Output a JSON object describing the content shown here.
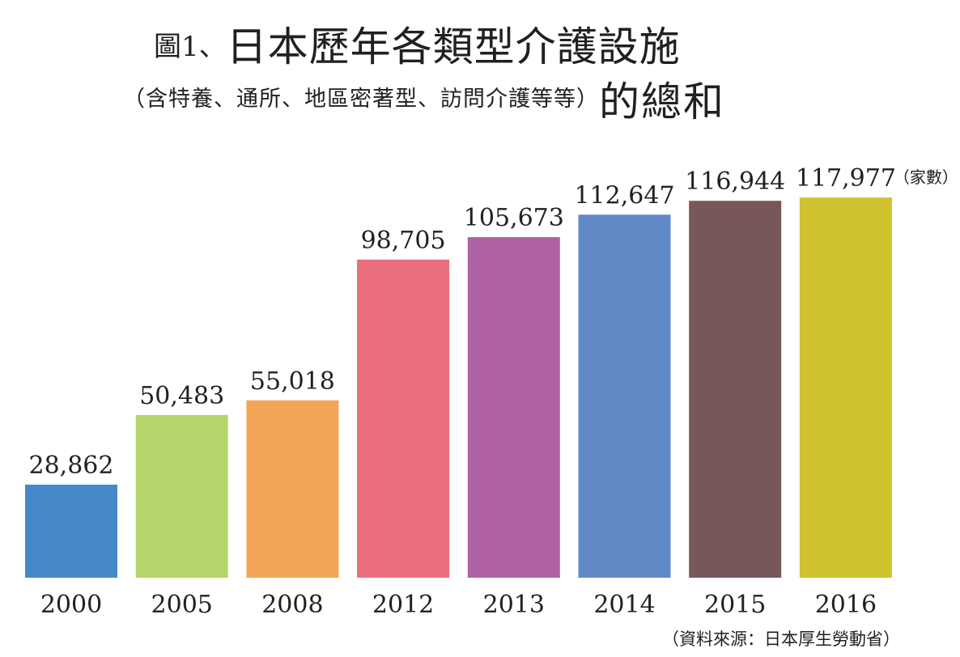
{
  "title": {
    "prefix": "圖1、",
    "main": "日本歷年各類型介護設施",
    "subtitle_paren": "（含特養、通所、地區密著型、訪問介護等等）",
    "subtitle_tail": "的總和"
  },
  "unit_label": "（家數）",
  "source": "（資料來源：日本厚生勞動省）",
  "chart_data": {
    "type": "bar",
    "categories": [
      "2000",
      "2005",
      "2008",
      "2012",
      "2013",
      "2014",
      "2015",
      "2016"
    ],
    "values": [
      28862,
      50483,
      55018,
      98705,
      105673,
      112647,
      116944,
      117977
    ],
    "value_labels": [
      "28,862",
      "50,483",
      "55,018",
      "98,705",
      "105,673",
      "112,647",
      "116,944",
      "117,977"
    ],
    "colors": [
      "#4589c8",
      "#b5d56a",
      "#f3a557",
      "#ea6e7e",
      "#ae62a3",
      "#6189c6",
      "#77575a",
      "#d1c22f"
    ],
    "title": "日本歷年各類型介護設施（含特養、通所、地區密著型、訪問介護等等）的總和",
    "unit": "（家數）",
    "ylim": [
      0,
      120000
    ],
    "grid": false,
    "legend": "none"
  }
}
